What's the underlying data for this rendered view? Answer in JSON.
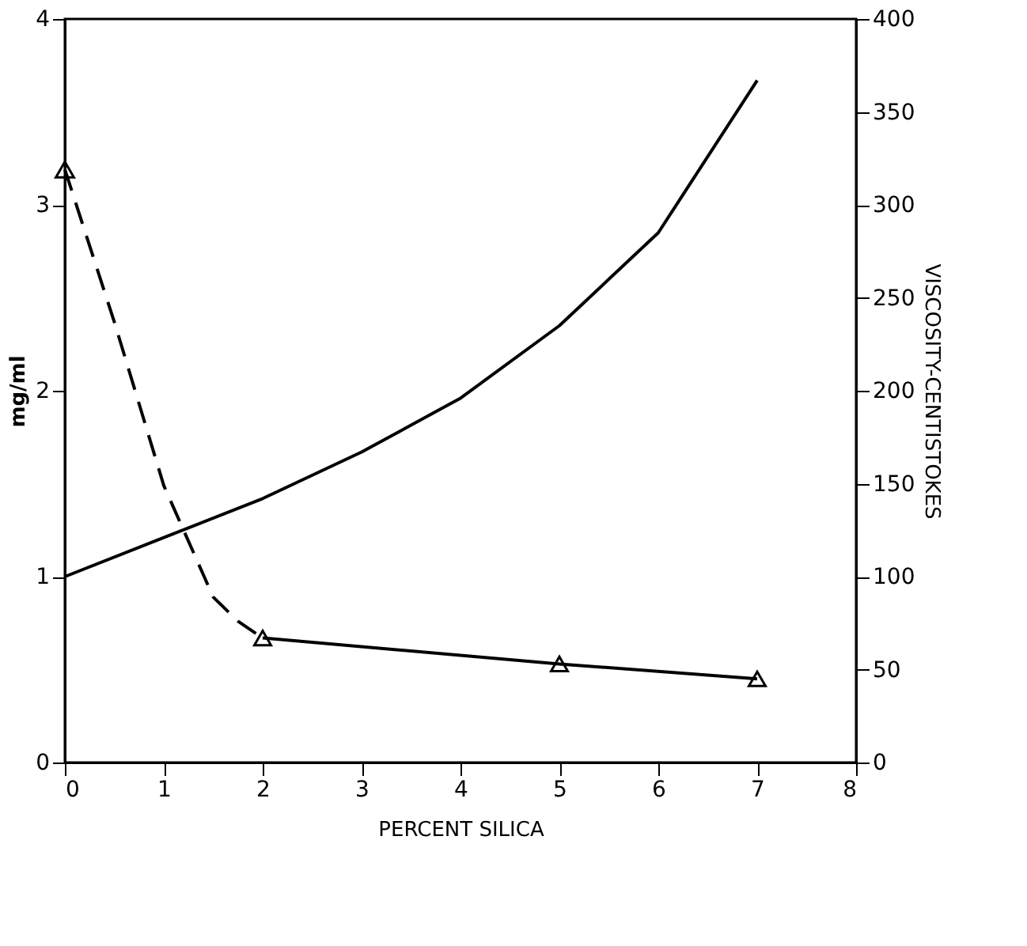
{
  "chart_data": {
    "type": "line",
    "xlabel": "PERCENT SILICA",
    "ylabel": "mg/ml",
    "y2label": "VISCOSITY-CENTISTOKES",
    "xlim": [
      0,
      8
    ],
    "xticks": [
      0,
      1,
      2,
      3,
      4,
      5,
      6,
      7,
      8
    ],
    "ylim": [
      0,
      4
    ],
    "yticks": [
      0,
      1,
      2,
      3,
      4
    ],
    "y2lim": [
      0,
      400
    ],
    "y2ticks": [
      0,
      50,
      100,
      150,
      200,
      250,
      300,
      350,
      400
    ],
    "grid": false,
    "series": [
      {
        "color": "#000000",
        "line_style": "dashed",
        "marker": "none",
        "x": [
          0,
          0.5,
          1,
          1.5,
          1.75,
          2
        ],
        "values": [
          3.19,
          2.37,
          1.49,
          0.89,
          0.76,
          0.67
        ]
      },
      {
        "color": "#000000",
        "line_style": "solid",
        "marker": "triangle",
        "x": [
          2,
          5,
          7
        ],
        "values": [
          0.67,
          0.53,
          0.45
        ]
      },
      {
        "type": "scatter",
        "color": "#000000",
        "marker": "triangle",
        "x": [
          0
        ],
        "values": [
          3.19
        ]
      },
      {
        "color": "#000000",
        "line_style": "solid",
        "marker": "none",
        "axis": "y2",
        "x": [
          0,
          1,
          2,
          3,
          4,
          5,
          6,
          7
        ],
        "values": [
          100,
          121,
          142,
          167,
          196,
          235,
          285,
          367
        ]
      }
    ]
  }
}
